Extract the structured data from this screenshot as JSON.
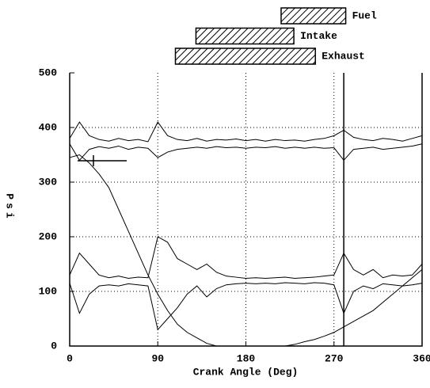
{
  "chart_data": {
    "type": "line",
    "xlabel": "Crank Angle (Deg)",
    "ylabel": "Psi",
    "x": [
      0,
      10,
      20,
      30,
      40,
      50,
      60,
      70,
      80,
      90,
      100,
      110,
      120,
      130,
      140,
      150,
      160,
      170,
      180,
      190,
      200,
      210,
      220,
      230,
      240,
      250,
      260,
      270,
      280,
      290,
      300,
      310,
      320,
      330,
      340,
      350,
      360
    ],
    "series": [
      {
        "color": "#000000",
        "values": [
          380,
          410,
          385,
          378,
          375,
          380,
          376,
          378,
          374,
          410,
          385,
          378,
          376,
          380,
          375,
          378,
          377,
          379,
          376,
          378,
          375,
          378,
          376,
          377,
          375,
          378,
          380,
          385,
          395,
          382,
          378,
          376,
          380,
          378,
          375,
          380,
          385
        ]
      },
      {
        "color": "#000000",
        "values": [
          370,
          340,
          360,
          365,
          362,
          366,
          360,
          364,
          362,
          345,
          355,
          360,
          362,
          364,
          362,
          365,
          363,
          364,
          362,
          364,
          363,
          365,
          362,
          364,
          362,
          364,
          362,
          363,
          340,
          360,
          362,
          364,
          360,
          362,
          364,
          366,
          370
        ]
      },
      {
        "color": "#000000",
        "values": [
          130,
          170,
          150,
          130,
          125,
          128,
          124,
          126,
          125,
          200,
          190,
          160,
          150,
          140,
          150,
          135,
          128,
          126,
          124,
          125,
          124,
          125,
          126,
          124,
          125,
          126,
          128,
          130,
          170,
          140,
          130,
          140,
          125,
          130,
          128,
          130,
          150
        ]
      },
      {
        "color": "#000000",
        "values": [
          115,
          60,
          95,
          110,
          112,
          110,
          114,
          112,
          110,
          30,
          50,
          70,
          95,
          110,
          90,
          105,
          112,
          114,
          115,
          114,
          115,
          114,
          116,
          115,
          114,
          116,
          115,
          112,
          60,
          100,
          110,
          105,
          114,
          112,
          110,
          112,
          115
        ]
      },
      {
        "color": "#000000",
        "values": [
          345,
          350,
          335,
          315,
          290,
          250,
          210,
          170,
          130,
          95,
          65,
          40,
          25,
          15,
          5,
          0,
          0,
          0,
          0,
          0,
          0,
          0,
          0,
          3,
          8,
          12,
          18,
          25,
          35,
          45,
          55,
          65,
          80,
          95,
          110,
          125,
          140
        ]
      }
    ],
    "xlim": [
      0,
      360
    ],
    "xticks": [
      0,
      90,
      180,
      270,
      360
    ],
    "ylim": [
      0,
      500
    ],
    "yticks": [
      0,
      100,
      200,
      300,
      400,
      500
    ],
    "grid": true,
    "vline": 280,
    "timing_bars": [
      {
        "label": "Fuel",
        "start": 216,
        "end": 282
      },
      {
        "label": "Intake",
        "start": 129,
        "end": 229
      },
      {
        "label": "Exhaust",
        "start": 108,
        "end": 251
      }
    ]
  }
}
